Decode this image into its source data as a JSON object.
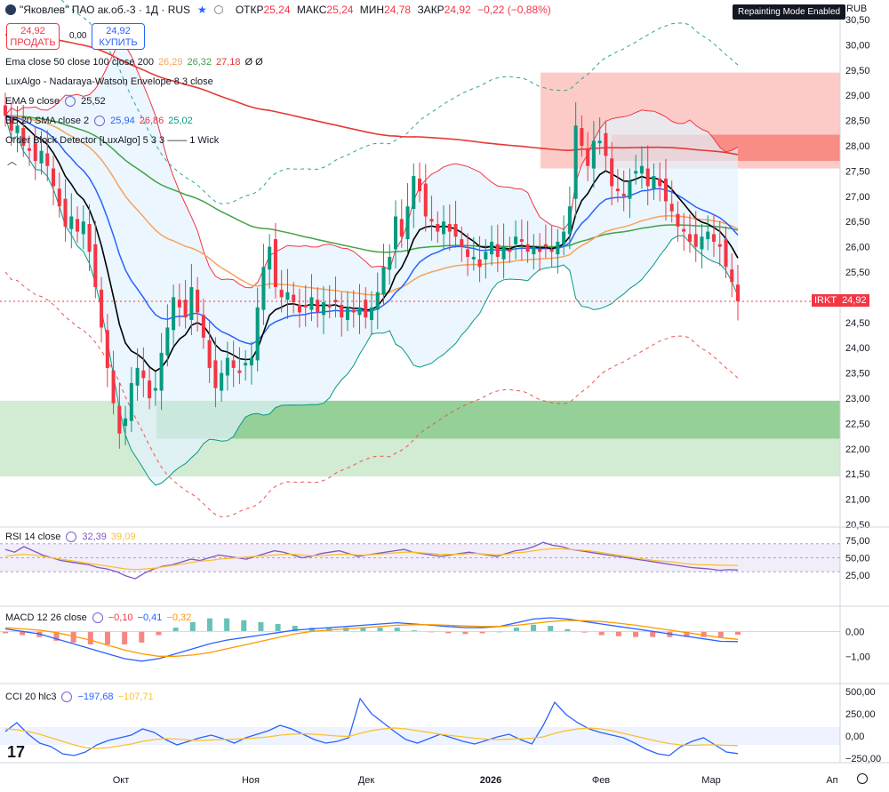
{
  "header": {
    "title": "\"Яковлев\" ПАО ак.об.-3 · 1Д · RUS",
    "ohlc": [
      {
        "k": "ОТКР",
        "v": "25,24"
      },
      {
        "k": "МАКС",
        "v": "25,24"
      },
      {
        "k": "МИН",
        "v": "24,78"
      },
      {
        "k": "ЗАКР",
        "v": "24,92"
      },
      {
        "k": "",
        "v": "−0,22 (−0,88%)"
      }
    ],
    "repaint_badge": "Repainting Mode Enabled",
    "currency": "RUB"
  },
  "trade": {
    "sell_price": "24,92",
    "sell_label": "ПРОДАТЬ",
    "spread": "0,00",
    "buy_price": "24,92",
    "buy_label": "КУПИТЬ"
  },
  "legends": {
    "ema_multi": {
      "label": "Ema close 50 close 100 close 200",
      "v1": "26,29",
      "v2": "26,32",
      "v3": "27,18",
      "tail": "Ø Ø"
    },
    "nwe": {
      "label": "LuxAlgo - Nadaraya-Watson Envelope 8 3 close"
    },
    "ema9": {
      "label": "EMA 9 close",
      "v": "25,52"
    },
    "bb": {
      "label": "BB 20 SMA close 2",
      "v1": "25,94",
      "v2": "26,86",
      "v3": "25,02"
    },
    "ob": {
      "label": "Order Block Detector [LuxAlgo] 5 3 3 —— 1 Wick"
    },
    "rsi": {
      "label": "RSI 14 close",
      "v1": "32,39",
      "v2": "39,09"
    },
    "macd": {
      "label": "MACD 12 26 close",
      "v1": "−0,10",
      "v2": "−0,41",
      "v3": "−0,32"
    },
    "cci": {
      "label": "CCI 20 hlc3",
      "v1": "−197,68",
      "v2": "−107,71"
    }
  },
  "last_price": {
    "ticker": "IRKT",
    "value": "24,92"
  },
  "colors": {
    "up": "#089981",
    "down": "#f23645",
    "ema9": "#000000",
    "ema20": "#2962ff",
    "ema50": "#f7a35c",
    "ema100": "#43a047",
    "ema200": "#e53935",
    "bb_fill": "#e3f2fd",
    "ob_bull": "#4caf50",
    "ob_bear": "#f44336",
    "rsi": "#7e57c2",
    "rsi_ma": "#fbc02d",
    "macd": "#2962ff",
    "signal": "#ff9800",
    "cci": "#2962ff",
    "cci_ma": "#fbc02d"
  },
  "chart_data": [
    {
      "type": "candlestick",
      "panel": "price",
      "x_ticks": [
        "Окт",
        "Ноя",
        "Дек",
        "2026",
        "Фев",
        "Мар",
        "Ап"
      ],
      "y_ticks": [
        "20,50",
        "21,00",
        "21,50",
        "22,00",
        "22,50",
        "23,00",
        "23,50",
        "24,00",
        "24,50",
        "25,00",
        "25,50",
        "26,00",
        "26,50",
        "27,00",
        "27,50",
        "28,00",
        "28,50",
        "29,00",
        "29,50",
        "30,00",
        "30,50"
      ],
      "ylim": [
        20.5,
        30.5
      ],
      "grid": false,
      "close_series": [
        28.6,
        28.3,
        28.4,
        28.0,
        27.9,
        27.7,
        27.9,
        27.6,
        27.2,
        26.8,
        26.4,
        26.6,
        26.3,
        26.5,
        25.9,
        25.2,
        24.4,
        23.6,
        22.9,
        22.3,
        22.6,
        23.3,
        23.6,
        23.4,
        23.0,
        23.2,
        23.9,
        24.4,
        25.0,
        24.8,
        24.6,
        25.2,
        24.7,
        24.2,
        23.6,
        23.2,
        23.5,
        23.8,
        23.6,
        23.5,
        23.7,
        23.8,
        24.8,
        25.6,
        26.0,
        25.2,
        25.0,
        25.1,
        24.9,
        24.7,
        24.8,
        25.0,
        24.7,
        24.9,
        24.8,
        24.9,
        24.6,
        24.8,
        24.7,
        24.8,
        24.6,
        24.8,
        25.1,
        25.6,
        25.8,
        26.6,
        26.2,
        26.8,
        27.4,
        27.1,
        26.6,
        26.5,
        26.3,
        26.5,
        26.3,
        26.2,
        26.0,
        25.8,
        25.8,
        25.6,
        25.9,
        26.1,
        25.8,
        26.0,
        25.9,
        26.2,
        26.1,
        25.9,
        26.0,
        25.9,
        26.0,
        25.9,
        26.1,
        26.3,
        26.8,
        28.4,
        28.0,
        27.6,
        28.1,
        28.1,
        27.8,
        27.2,
        27.1,
        27.0,
        27.3,
        27.5,
        27.6,
        27.2,
        27.4,
        27.2,
        26.9,
        26.7,
        26.4,
        26.3,
        26.1,
        26.0,
        26.2,
        26.3,
        26.1,
        26.0,
        25.6,
        25.3,
        24.92
      ],
      "x_range": [
        "2025-09",
        "2026-03"
      ]
    },
    {
      "type": "line",
      "panel": "rsi",
      "y_ticks": [
        "25,00",
        "50,00",
        "75,00"
      ],
      "ylim": [
        15,
        85
      ],
      "series": [
        {
          "name": "RSI 14 close",
          "values": [
            62,
            58,
            66,
            60,
            54,
            50,
            46,
            44,
            42,
            40,
            36,
            34,
            30,
            24,
            20,
            28,
            34,
            38,
            40,
            44,
            48,
            46,
            50,
            54,
            52,
            50,
            48,
            52,
            56,
            60,
            58,
            54,
            50,
            52,
            56,
            58,
            60,
            56,
            52,
            54,
            56,
            58,
            60,
            62,
            58,
            56,
            54,
            52,
            54,
            56,
            58,
            56,
            54,
            52,
            56,
            60,
            62,
            66,
            72,
            68,
            66,
            62,
            60,
            58,
            56,
            54,
            52,
            50,
            48,
            46,
            44,
            42,
            40,
            38,
            36,
            35,
            34,
            32,
            33,
            32.4
          ]
        },
        {
          "name": "",
          "values": [
            52,
            54,
            55,
            54,
            52,
            50,
            48,
            46,
            44,
            42,
            40,
            38,
            36,
            34,
            33,
            34,
            35,
            37,
            39,
            41,
            43,
            45,
            46,
            48,
            49,
            50,
            51,
            52,
            53,
            54,
            55,
            55,
            54,
            53,
            53,
            54,
            55,
            55,
            54,
            54,
            55,
            56,
            57,
            58,
            58,
            57,
            56,
            55,
            55,
            55,
            56,
            56,
            55,
            54,
            55,
            57,
            58,
            60,
            62,
            63,
            63,
            62,
            61,
            60,
            58,
            56,
            54,
            52,
            50,
            48,
            46,
            45,
            44,
            42,
            41,
            40,
            40,
            39.5,
            39.2,
            39.1
          ]
        }
      ]
    },
    {
      "type": "line",
      "panel": "macd",
      "y_ticks": [
        "0,00",
        "−1,00"
      ],
      "ylim": [
        -1.6,
        0.8
      ],
      "series": [
        {
          "name": "",
          "values": [
            0.1,
            0.0,
            -0.1,
            -0.3,
            -0.5,
            -0.7,
            -0.9,
            -1.1,
            -1.2,
            -1.1,
            -0.9,
            -0.7,
            -0.5,
            -0.35,
            -0.25,
            -0.15,
            -0.05,
            0.05,
            0.1,
            0.15,
            0.2,
            0.25,
            0.3,
            0.35,
            0.3,
            0.25,
            0.2,
            0.15,
            0.15,
            0.2,
            0.35,
            0.5,
            0.55,
            0.5,
            0.4,
            0.3,
            0.2,
            0.1,
            0.0,
            -0.1,
            -0.2,
            -0.3,
            -0.4,
            -0.41
          ]
        },
        {
          "name": "",
          "values": [
            0.15,
            0.1,
            0.05,
            -0.05,
            -0.2,
            -0.35,
            -0.55,
            -0.75,
            -0.9,
            -1.0,
            -1.0,
            -0.95,
            -0.85,
            -0.7,
            -0.55,
            -0.4,
            -0.25,
            -0.1,
            0.0,
            0.05,
            0.1,
            0.15,
            0.2,
            0.25,
            0.27,
            0.27,
            0.25,
            0.22,
            0.2,
            0.2,
            0.25,
            0.32,
            0.4,
            0.44,
            0.43,
            0.4,
            0.33,
            0.25,
            0.15,
            0.05,
            -0.05,
            -0.15,
            -0.25,
            -0.32
          ]
        }
      ]
    },
    {
      "type": "line",
      "panel": "cci",
      "y_ticks": [
        "500,00",
        "250,00",
        "0,00",
        "−250,00"
      ],
      "ylim": [
        -300,
        560
      ],
      "series": [
        {
          "name": "",
          "values": [
            50,
            150,
            20,
            -80,
            -120,
            -200,
            -220,
            -180,
            -100,
            -50,
            -20,
            10,
            80,
            40,
            -40,
            -100,
            -60,
            -20,
            10,
            -30,
            -80,
            -20,
            20,
            60,
            120,
            80,
            20,
            -40,
            -80,
            -60,
            -20,
            420,
            250,
            150,
            50,
            -40,
            -80,
            -30,
            20,
            -20,
            -60,
            -90,
            -50,
            -10,
            20,
            -40,
            -90,
            120,
            380,
            240,
            150,
            80,
            40,
            10,
            -20,
            -80,
            -150,
            -200,
            -220,
            -120,
            -60,
            -20,
            -100,
            -180,
            -197.68
          ]
        },
        {
          "name": "",
          "values": [
            80,
            70,
            50,
            20,
            -20,
            -60,
            -100,
            -130,
            -140,
            -130,
            -110,
            -90,
            -60,
            -40,
            -30,
            -35,
            -45,
            -50,
            -45,
            -40,
            -35,
            -30,
            -20,
            -10,
            10,
            20,
            25,
            20,
            10,
            0,
            -5,
            30,
            60,
            80,
            90,
            80,
            60,
            40,
            20,
            5,
            -10,
            -25,
            -35,
            -40,
            -35,
            -30,
            -25,
            -10,
            30,
            60,
            80,
            90,
            80,
            60,
            30,
            0,
            -30,
            -60,
            -85,
            -100,
            -105,
            -100,
            -100,
            -105,
            -107.71
          ]
        }
      ]
    }
  ]
}
